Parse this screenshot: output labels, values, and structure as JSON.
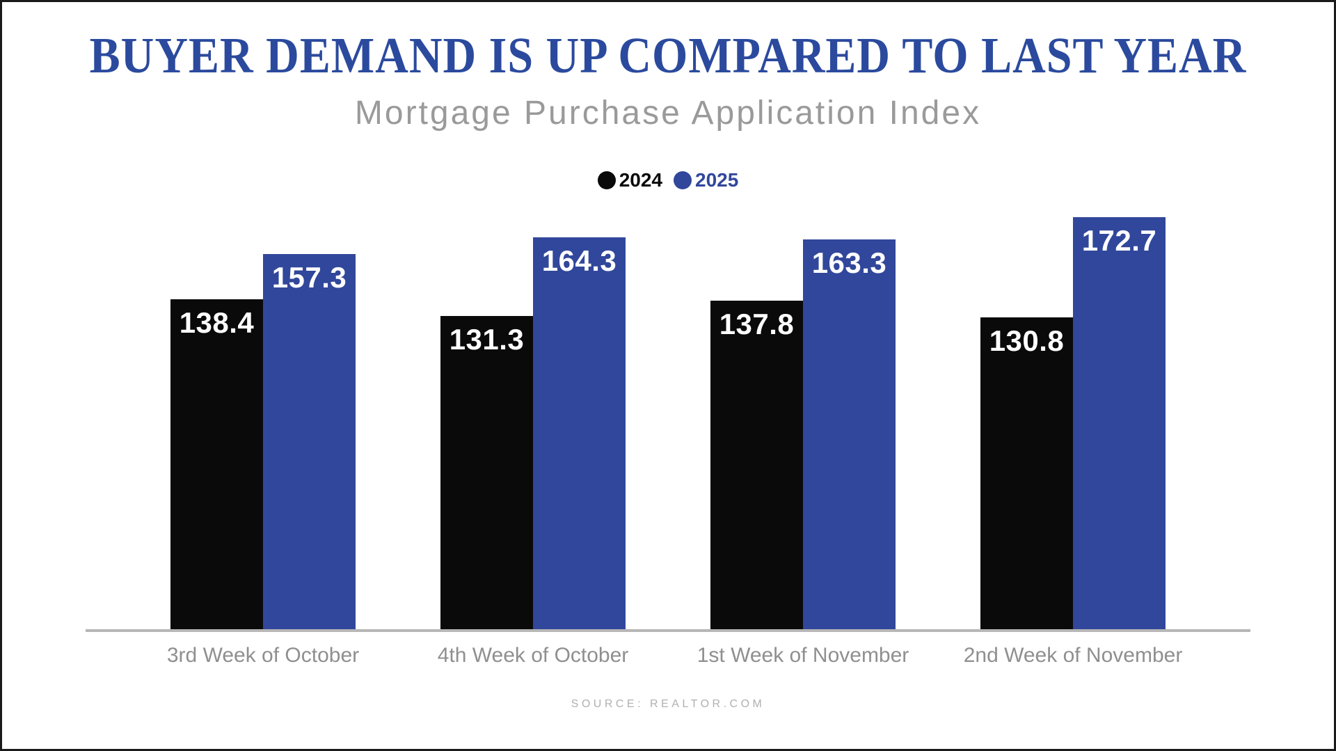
{
  "header": {
    "title": "BUYER DEMAND IS UP COMPARED TO LAST YEAR",
    "subtitle": "Mortgage Purchase Application Index"
  },
  "chart_data": {
    "type": "bar",
    "title": "Buyer Demand Is Up Compared To Last Year",
    "subtitle": "Mortgage Purchase Application Index",
    "categories": [
      "3rd Week of October",
      "4th Week of October",
      "1st Week of November",
      "2nd Week of November"
    ],
    "series": [
      {
        "name": "2024",
        "color": "#0a0a0a",
        "values": [
          138.4,
          131.3,
          137.8,
          130.8
        ]
      },
      {
        "name": "2025",
        "color": "#31479b",
        "values": [
          157.3,
          164.3,
          163.3,
          172.7
        ]
      }
    ],
    "xlabel": "",
    "ylabel": "",
    "ylim": [
      0,
      180
    ],
    "grid": false,
    "axes": "baseline-only",
    "value_labels": "inside-top",
    "legend_position": "top-center"
  },
  "footer": {
    "source": "SOURCE: REALTOR.COM"
  },
  "colors": {
    "title_blue": "#2b4a9e",
    "series_2024": "#0a0a0a",
    "series_2025": "#31479b",
    "subtitle_gray": "#9a9a9a",
    "axis_gray": "#b7b7b7",
    "label_gray": "#8f8f8f",
    "source_gray": "#b0b0b0",
    "value_white": "#ffffff",
    "border_dark": "#1a1a1a"
  }
}
